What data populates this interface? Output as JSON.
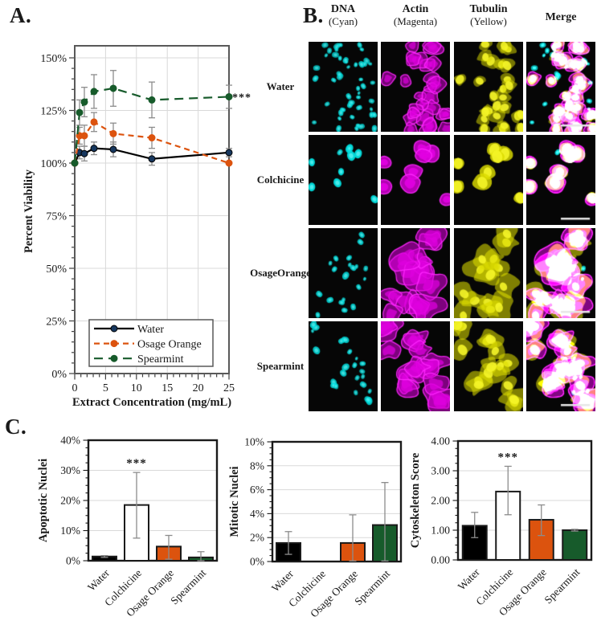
{
  "labels": {
    "a": "A.",
    "b": "B.",
    "c": "C."
  },
  "colors": {
    "water_line": "#000000",
    "water_marker": "#17375E",
    "osage": "#DC530E",
    "spearmint": "#175B2B",
    "colchicine_bar": "#FFFFFF",
    "grid": "#D9D9D9",
    "box": "#404040",
    "error_bar": "#8C8C8C",
    "dna_cyan": "#00E0E0",
    "actin_magenta": "#E000E0",
    "tubulin_yellow": "#DCDC00"
  },
  "bar_colors": [
    "#000000",
    "#FFFFFF",
    "#DC530E",
    "#175B2B"
  ],
  "chart_data": [
    {
      "id": "viability",
      "type": "line",
      "xlabel": "Extract Concentration (mg/mL)",
      "ylabel": "Percent Viability",
      "xlim": [
        0,
        25
      ],
      "xticks": [
        0,
        5,
        10,
        15,
        20,
        25
      ],
      "xtick_labels": [
        "0",
        "5",
        "10",
        "15",
        "20",
        "25"
      ],
      "ylim": [
        0,
        155
      ],
      "yticks": [
        0,
        25,
        50,
        75,
        100,
        125,
        150
      ],
      "ytick_labels": [
        "0%",
        "25%",
        "50%",
        "75%",
        "100%",
        "125%",
        "150%"
      ],
      "grid": true,
      "legend_position": "bottom-left",
      "x": [
        0,
        0.78,
        1.56,
        3.125,
        6.25,
        12.5,
        25
      ],
      "series": [
        {
          "name": "Water",
          "values": [
            100,
            105,
            104.5,
            107,
            106.5,
            102,
            105
          ],
          "err": [
            0,
            3,
            3.5,
            3,
            3.5,
            3,
            2
          ],
          "dash": "solid",
          "color": "#000000",
          "marker": "#17375E"
        },
        {
          "name": "Osage Orange",
          "values": [
            100,
            113,
            113,
            119.5,
            114,
            112,
            100
          ],
          "err": [
            0,
            4,
            5,
            4.5,
            5,
            5,
            0
          ],
          "dash": "dash",
          "color": "#DC530E",
          "marker": "#DC530E"
        },
        {
          "name": "Spearmint",
          "values": [
            100,
            124,
            129,
            134,
            135.5,
            130,
            131.5
          ],
          "err": [
            0,
            6,
            7,
            8,
            8.5,
            8.5,
            5.5
          ],
          "dash": "longdash",
          "color": "#175B2B",
          "marker": "#175B2B"
        }
      ],
      "annotation": {
        "text": "***",
        "series": "Spearmint",
        "x": 25
      }
    },
    {
      "id": "apoptotic",
      "type": "bar",
      "ylabel": "Apoptotic Nuclei",
      "categories": [
        "Water",
        "Colchicine",
        "Osage Orange",
        "Spearmint"
      ],
      "values": [
        1.4,
        18.5,
        4.7,
        1.1
      ],
      "err_lo": [
        0.3,
        11.0,
        4.2,
        1.1
      ],
      "err_hi": [
        0.3,
        10.8,
        3.7,
        1.9
      ],
      "ymax": 40,
      "ytick_step": 10,
      "ytick_labels": [
        "0%",
        "10%",
        "20%",
        "30%",
        "40%"
      ],
      "annotations": [
        "",
        "***",
        "",
        ""
      ]
    },
    {
      "id": "mitotic",
      "type": "bar",
      "ylabel": "Mitotic Nuclei",
      "categories": [
        "Water",
        "Colchicine",
        "Osage Orange",
        "Spearmint"
      ],
      "values": [
        1.55,
        0,
        1.55,
        3.05
      ],
      "err_lo": [
        0.95,
        0,
        1.5,
        3.0
      ],
      "err_hi": [
        0.95,
        0,
        2.35,
        3.55
      ],
      "ymax": 10,
      "ytick_step": 2,
      "ytick_labels": [
        "0%",
        "2%",
        "4%",
        "6%",
        "8%",
        "10%"
      ],
      "annotations": [
        "",
        "",
        "",
        ""
      ]
    },
    {
      "id": "cytoskeleton",
      "type": "bar",
      "ylabel": "Cytoskeleton Score",
      "categories": [
        "Water",
        "Colchicine",
        "Osage Orange",
        "Spearmint"
      ],
      "values": [
        1.15,
        2.3,
        1.35,
        1.0
      ],
      "err_lo": [
        0.4,
        0.78,
        0.53,
        0.03
      ],
      "err_hi": [
        0.45,
        0.85,
        0.5,
        0.03
      ],
      "ymax": 4,
      "ytick_step": 1,
      "ytick_labels": [
        "0.00",
        "1.00",
        "2.00",
        "3.00",
        "4.00"
      ],
      "annotations": [
        "",
        "***",
        "",
        ""
      ]
    }
  ],
  "panel_b": {
    "columns": [
      {
        "title": "DNA",
        "subtitle": "(Cyan)"
      },
      {
        "title": "Actin",
        "subtitle": "(Magenta)"
      },
      {
        "title": "Tubulin",
        "subtitle": "(Yellow)"
      },
      {
        "title": "Merge",
        "subtitle": ""
      }
    ],
    "rows": [
      {
        "label_lines": [
          "Water"
        ],
        "style": "many",
        "cells": 26,
        "extra_nuclei": 22
      },
      {
        "label_lines": [
          "Colchicine"
        ],
        "style": "round",
        "cells": 8,
        "extra_nuclei": 2
      },
      {
        "label_lines": [
          "Osage",
          "Orange"
        ],
        "style": "stellate",
        "cells": 14,
        "extra_nuclei": 6
      },
      {
        "label_lines": [
          "Spearmint"
        ],
        "style": "stellate",
        "cells": 15,
        "extra_nuclei": 8
      }
    ],
    "channels": [
      "dna",
      "actin",
      "tubulin",
      "merge"
    ],
    "scalebar_on": "merge"
  }
}
